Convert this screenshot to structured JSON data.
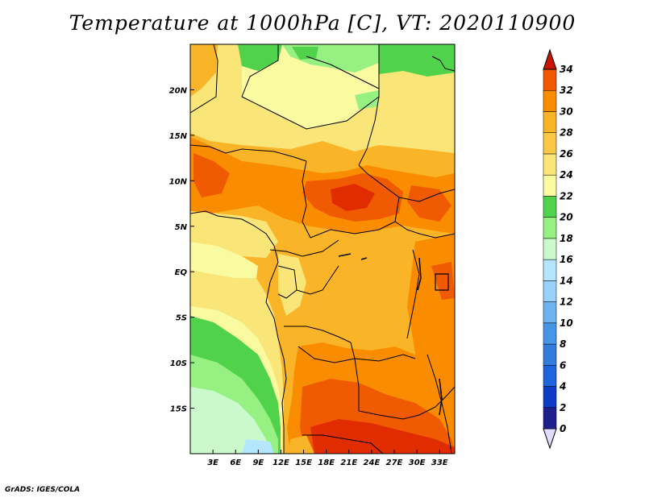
{
  "title": "Temperature at 1000hPa [C], VT: 2020110900",
  "credit": "GrADS: IGES/COLA",
  "map": {
    "lon_range": [
      0,
      35
    ],
    "lat_range": [
      -20,
      25
    ],
    "lon_ticks": [
      "3E",
      "6E",
      "9E",
      "12E",
      "15E",
      "18E",
      "21E",
      "24E",
      "27E",
      "30E",
      "33E"
    ],
    "lat_ticks": [
      "20N",
      "15N",
      "10N",
      "5N",
      "EQ",
      "5S",
      "10S",
      "15S"
    ]
  },
  "colorbar": {
    "levels": [
      "0",
      "2",
      "4",
      "6",
      "8",
      "10",
      "12",
      "14",
      "16",
      "18",
      "20",
      "22",
      "24",
      "26",
      "28",
      "30",
      "32",
      "34"
    ],
    "colors": [
      "#1e1e8c",
      "#0e3cc8",
      "#1e64dc",
      "#327ddc",
      "#4696e6",
      "#6eb4f0",
      "#96d2fa",
      "#b4e6ff",
      "#cafacc",
      "#96f082",
      "#50d24a",
      "#fafaa0",
      "#fae678",
      "#fac846",
      "#fab428",
      "#fa8c00",
      "#f05a00",
      "#e12c00",
      "#c81400"
    ]
  }
}
